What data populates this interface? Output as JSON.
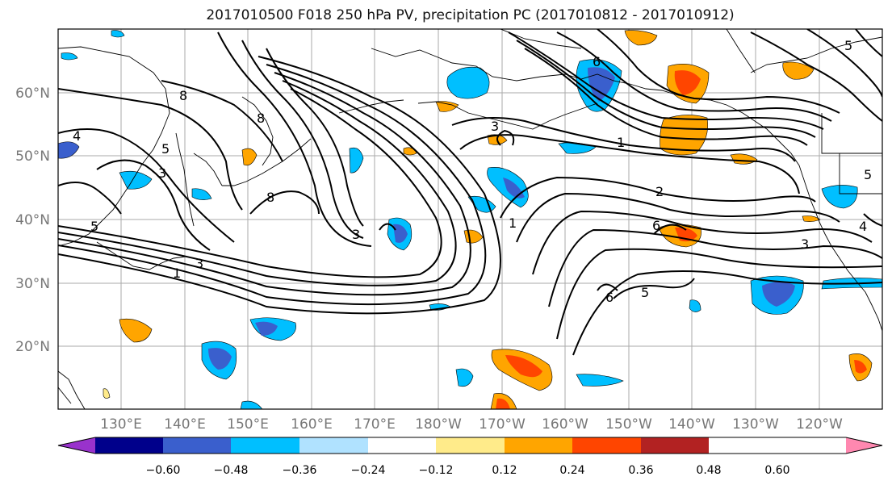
{
  "title": "2017010500 F018 250 hPa PV, precipitation PC (2017010812 - 2017010912)",
  "map": {
    "lat_labels": [
      "60°N",
      "50°N",
      "40°N",
      "30°N",
      "20°N"
    ],
    "lon_labels": [
      "130°E",
      "140°E",
      "150°E",
      "160°E",
      "170°E",
      "180°W",
      "170°W",
      "160°W",
      "150°W",
      "140°W",
      "130°W",
      "120°W"
    ],
    "contour_labels": [
      "8",
      "8",
      "8",
      "4",
      "5",
      "3",
      "5",
      "1",
      "1",
      "3",
      "3",
      "1",
      "2",
      "6",
      "6",
      "5",
      "3",
      "4",
      "5",
      "5",
      "6",
      "3"
    ]
  },
  "colorbar": {
    "ticks": [
      "−0.60",
      "−0.48",
      "−0.36",
      "−0.24",
      "−0.12",
      "0.12",
      "0.24",
      "0.36",
      "0.48",
      "0.60"
    ],
    "colors": [
      "#9932cc",
      "#00008b",
      "#3a5fcd",
      "#00bfff",
      "#b0e2ff",
      "#ffffff",
      "#ffeb8a",
      "#ffa500",
      "#ff4500",
      "#b22222",
      "#ff88b0"
    ],
    "extend": "both"
  }
}
